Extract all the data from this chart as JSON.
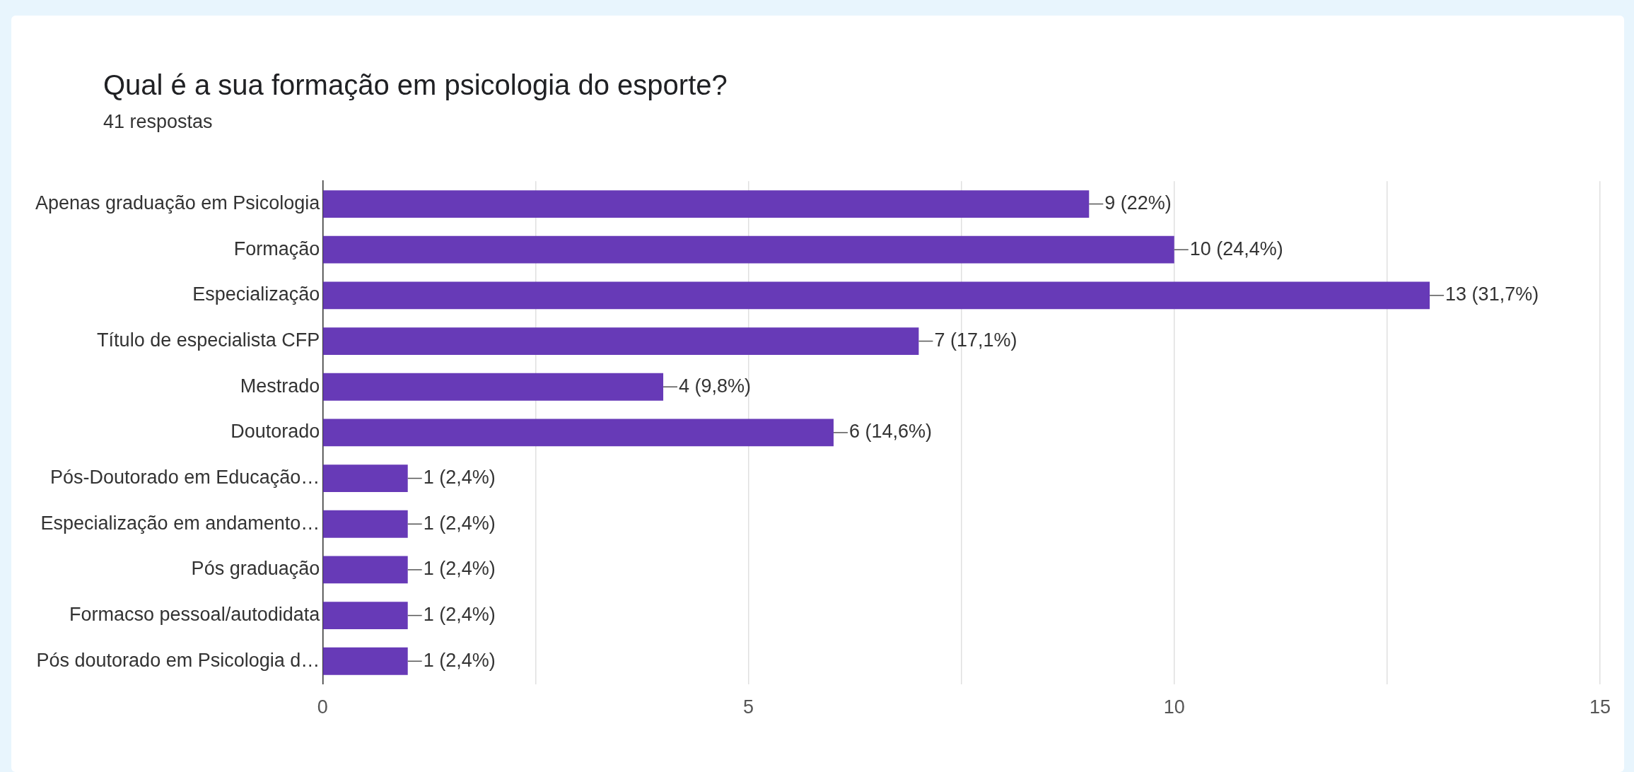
{
  "chart_data": {
    "type": "bar",
    "orientation": "horizontal",
    "title": "Qual é a sua formação em psicologia do esporte?",
    "subtitle": "41 respostas",
    "categories": [
      "Apenas graduação em Psicologia",
      "Formação",
      "Especialização",
      "Título de especialista CFP",
      "Mestrado",
      "Doutorado",
      "Pós-Doutorado em Educação…",
      "Especialização em andamento…",
      "Pós graduação",
      "Formacso pessoal/autodidata",
      "Pós doutorado em Psicologia d…"
    ],
    "values": [
      9,
      10,
      13,
      7,
      4,
      6,
      1,
      1,
      1,
      1,
      1
    ],
    "value_labels": [
      "9 (22%)",
      "10 (24,4%)",
      "13 (31,7%)",
      "7 (17,1%)",
      "4 (9,8%)",
      "6 (14,6%)",
      "1 (2,4%)",
      "1 (2,4%)",
      "1 (2,4%)",
      "1 (2,4%)",
      "1 (2,4%)"
    ],
    "color": "#673ab7",
    "xlim": [
      0,
      15
    ],
    "xticks": [
      0,
      {
        "value": 2.5,
        "label": null
      },
      5,
      {
        "value": 7.5,
        "label": null
      },
      10,
      {
        "value": 12.5,
        "label": null
      },
      15
    ],
    "grid": "x",
    "legend": false
  }
}
